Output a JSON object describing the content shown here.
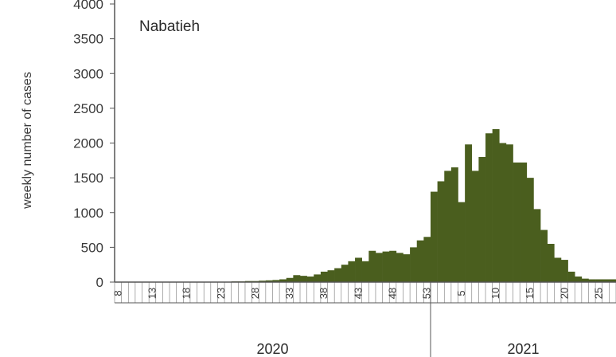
{
  "chart_data": {
    "type": "bar",
    "title": "Nabatieh",
    "ylabel": "weekly number of cases",
    "xlabel": "",
    "ylim": [
      0,
      4000
    ],
    "yticks": [
      0,
      500,
      1000,
      1500,
      2000,
      2500,
      3000,
      3500,
      4000
    ],
    "grid": false,
    "bar_color": "#4a5e1e",
    "x_tick_labels": [
      "8",
      "13",
      "18",
      "23",
      "28",
      "33",
      "38",
      "43",
      "48",
      "53",
      "5",
      "10",
      "15",
      "20",
      "25"
    ],
    "years": [
      {
        "label": "2020",
        "weeks": "8-53"
      },
      {
        "label": "2021",
        "weeks": "1-27"
      }
    ],
    "series": [
      {
        "year": "2020",
        "weeks": [
          8,
          9,
          10,
          11,
          12,
          13,
          14,
          15,
          16,
          17,
          18,
          19,
          20,
          21,
          22,
          23,
          24,
          25,
          26,
          27,
          28,
          29,
          30,
          31,
          32,
          33,
          34,
          35,
          36,
          37,
          38,
          39,
          40,
          41,
          42,
          43,
          44,
          45,
          46,
          47,
          48,
          49,
          50,
          51,
          52,
          53
        ],
        "values": [
          2,
          2,
          2,
          2,
          2,
          2,
          2,
          5,
          5,
          5,
          5,
          5,
          5,
          5,
          5,
          5,
          5,
          10,
          10,
          15,
          15,
          20,
          25,
          30,
          40,
          60,
          100,
          90,
          80,
          110,
          150,
          170,
          200,
          250,
          300,
          350,
          300,
          450,
          420,
          440,
          450,
          420,
          400,
          500,
          600,
          650
        ]
      },
      {
        "year": "2021",
        "weeks": [
          1,
          2,
          3,
          4,
          5,
          6,
          7,
          8,
          9,
          10,
          11,
          12,
          13,
          14,
          15,
          16,
          17,
          18,
          19,
          20,
          21,
          22,
          23,
          24,
          25,
          26,
          27
        ],
        "values": [
          1300,
          1450,
          1600,
          1650,
          1150,
          1980,
          1600,
          1800,
          2140,
          2200,
          2000,
          1980,
          1720,
          1720,
          1500,
          1050,
          750,
          550,
          350,
          320,
          150,
          80,
          50,
          40,
          40,
          40,
          40
        ]
      }
    ]
  }
}
